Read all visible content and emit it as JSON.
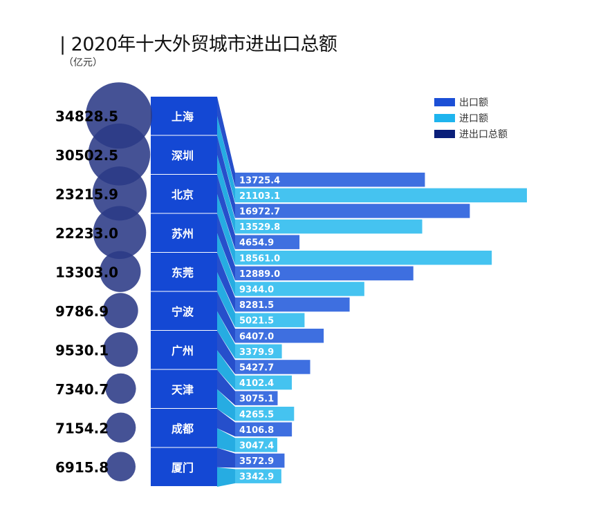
{
  "title": "| 2020年十大外贸城市进出口总额",
  "unit": "（亿元）",
  "colors": {
    "export": "#3e6fe0",
    "import": "#45c3f0",
    "total": "#0a1f7a",
    "city_block": "#1448d4",
    "circle": "#2b3a86"
  },
  "legend": [
    {
      "label": "出口额",
      "color": "#1b4fd6"
    },
    {
      "label": "进口额",
      "color": "#1eb4ee"
    },
    {
      "label": "进出口总额",
      "color": "#0a1f7a"
    }
  ],
  "chart_data": {
    "type": "bar",
    "title": "| 2020年十大外贸城市进出口总额",
    "unit": "（亿元）",
    "categories": [
      "上海",
      "深圳",
      "北京",
      "苏州",
      "东莞",
      "宁波",
      "广州",
      "天津",
      "成都",
      "厦门"
    ],
    "series": [
      {
        "name": "出口额",
        "values": [
          13725.4,
          16972.7,
          4654.9,
          12889.0,
          8281.5,
          6407.0,
          5427.7,
          3075.1,
          4106.8,
          3572.9
        ]
      },
      {
        "name": "进口额",
        "values": [
          21103.1,
          13529.8,
          18561.0,
          9344.0,
          5021.5,
          3379.9,
          4102.4,
          4265.5,
          3047.4,
          3342.9
        ]
      },
      {
        "name": "进出口总额",
        "values": [
          34828.5,
          30502.5,
          23215.9,
          22233.0,
          13303.0,
          9786.9,
          9530.1,
          7340.7,
          7154.2,
          6915.8
        ]
      }
    ],
    "total_labels": [
      "34828.5",
      "30502.5",
      "23215.9",
      "22233.0",
      "13303.0",
      "9786.9",
      "9530.1",
      "7340.7",
      "7154.2",
      "6915.8"
    ],
    "bars": [
      {
        "label": "13725.4",
        "value": 13725.4,
        "kind": "export"
      },
      {
        "label": "21103.1",
        "value": 21103.1,
        "kind": "import"
      },
      {
        "label": "16972.7",
        "value": 16972.7,
        "kind": "export"
      },
      {
        "label": "13529.8",
        "value": 13529.8,
        "kind": "import"
      },
      {
        "label": "4654.9",
        "value": 4654.9,
        "kind": "export"
      },
      {
        "label": "18561.0",
        "value": 18561.0,
        "kind": "import"
      },
      {
        "label": "12889.0",
        "value": 12889.0,
        "kind": "export"
      },
      {
        "label": "9344.0",
        "value": 9344.0,
        "kind": "import"
      },
      {
        "label": "8281.5",
        "value": 8281.5,
        "kind": "export"
      },
      {
        "label": "5021.5",
        "value": 5021.5,
        "kind": "import"
      },
      {
        "label": "6407.0",
        "value": 6407.0,
        "kind": "export"
      },
      {
        "label": "3379.9",
        "value": 3379.9,
        "kind": "import"
      },
      {
        "label": "5427.7",
        "value": 5427.7,
        "kind": "export"
      },
      {
        "label": "4102.4",
        "value": 4102.4,
        "kind": "import"
      },
      {
        "label": "3075.1",
        "value": 3075.1,
        "kind": "export"
      },
      {
        "label": "4265.5",
        "value": 4265.5,
        "kind": "import"
      },
      {
        "label": "4106.8",
        "value": 4106.8,
        "kind": "export"
      },
      {
        "label": "3047.4",
        "value": 3047.4,
        "kind": "import"
      },
      {
        "label": "3572.9",
        "value": 3572.9,
        "kind": "export"
      },
      {
        "label": "3342.9",
        "value": 3342.9,
        "kind": "import"
      }
    ],
    "legend_position": "top-right"
  }
}
